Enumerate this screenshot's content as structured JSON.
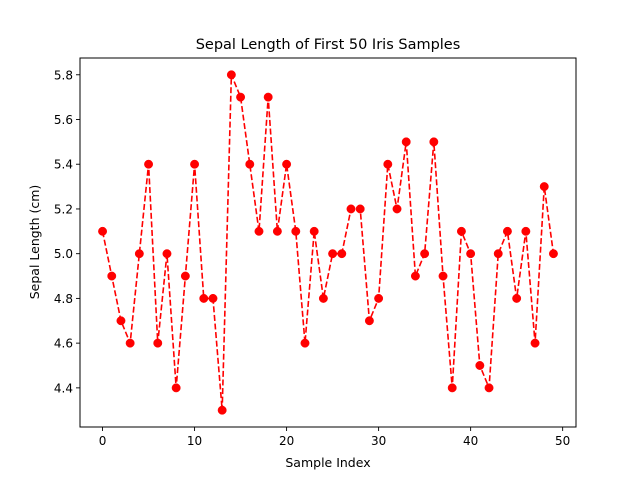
{
  "chart_data": {
    "type": "line",
    "title": "Sepal Length of First 50 Iris Samples",
    "xlabel": "Sample Index",
    "ylabel": "Sepal Length (cm)",
    "xlim": [
      -2.45,
      51.45
    ],
    "ylim": [
      4.225,
      5.875
    ],
    "xticks": [
      0,
      10,
      20,
      30,
      40,
      50
    ],
    "yticks": [
      4.4,
      4.6,
      4.8,
      5.0,
      5.2,
      5.4,
      5.6,
      5.8
    ],
    "grid": false,
    "series": [
      {
        "line_style": "dashed",
        "marker": "circle",
        "color": "#ff0000",
        "x": [
          0,
          1,
          2,
          3,
          4,
          5,
          6,
          7,
          8,
          9,
          10,
          11,
          12,
          13,
          14,
          15,
          16,
          17,
          18,
          19,
          20,
          21,
          22,
          23,
          24,
          25,
          26,
          27,
          28,
          29,
          30,
          31,
          32,
          33,
          34,
          35,
          36,
          37,
          38,
          39,
          40,
          41,
          42,
          43,
          44,
          45,
          46,
          47,
          48,
          49
        ],
        "values": [
          5.1,
          4.9,
          4.7,
          4.6,
          5.0,
          5.4,
          4.6,
          5.0,
          4.4,
          4.9,
          5.4,
          4.8,
          4.8,
          4.3,
          5.8,
          5.7,
          5.4,
          5.1,
          5.7,
          5.1,
          5.4,
          5.1,
          4.6,
          5.1,
          4.8,
          5.0,
          5.0,
          5.2,
          5.2,
          4.7,
          4.8,
          5.4,
          5.2,
          5.5,
          4.9,
          5.0,
          5.5,
          4.9,
          4.4,
          5.1,
          5.0,
          4.5,
          4.4,
          5.0,
          5.1,
          4.8,
          5.1,
          4.6,
          5.3,
          5.0
        ]
      }
    ]
  }
}
